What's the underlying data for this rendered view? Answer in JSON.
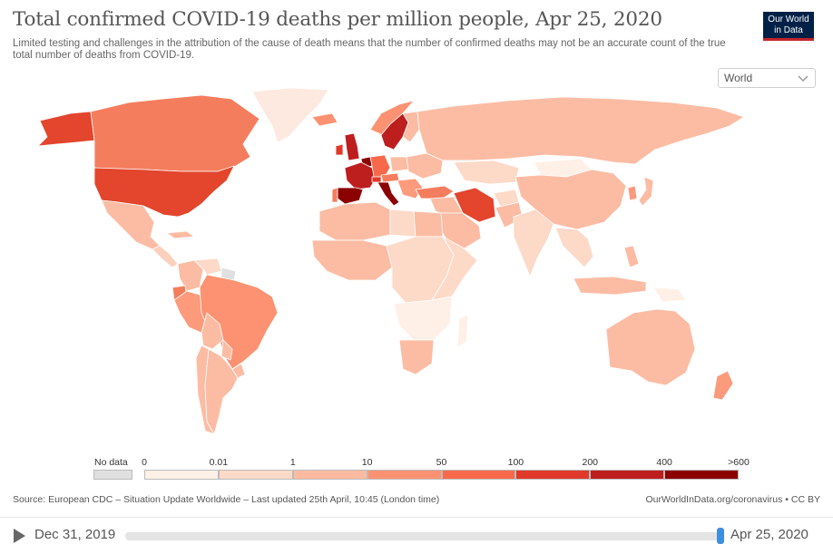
{
  "title": "Total confirmed COVID-19 deaths per million people, Apr 25, 2020",
  "subtitle": "Limited testing and challenges in the attribution of the cause of death means that the number of confirmed deaths may not be an accurate count of the true total number of deaths from COVID-19.",
  "logo": {
    "line1": "Our World",
    "line2": "in Data"
  },
  "region_selector": {
    "value": "World"
  },
  "legend": {
    "no_data_label": "No data",
    "no_data_color": "#e0e0e0",
    "breaks": [
      "0",
      "0.01",
      "1",
      "10",
      "50",
      "100",
      "200",
      "400",
      ">600"
    ],
    "colors": [
      "#fef0e7",
      "#fdd9c8",
      "#fcbba1",
      "#fc9272",
      "#f7694a",
      "#e0392b",
      "#bd1e1e",
      "#8b0000"
    ]
  },
  "regions": [
    {
      "name": "Canada",
      "color": "#f47d5e"
    },
    {
      "name": "United States",
      "color": "#e3452d"
    },
    {
      "name": "Greenland",
      "color": "#fde9e0"
    },
    {
      "name": "Alaska",
      "color": "#e3452d"
    },
    {
      "name": "Mexico",
      "color": "#fcbca4"
    },
    {
      "name": "Central America",
      "color": "#fcd0bc"
    },
    {
      "name": "Cuba",
      "color": "#fcbca4"
    },
    {
      "name": "Colombia",
      "color": "#fcbca4"
    },
    {
      "name": "Venezuela",
      "color": "#fdd9c8"
    },
    {
      "name": "Guyana",
      "color": "#e0e0e0"
    },
    {
      "name": "Ecuador",
      "color": "#f47d5e"
    },
    {
      "name": "Peru",
      "color": "#fc9a7c"
    },
    {
      "name": "Brazil",
      "color": "#fc9272"
    },
    {
      "name": "Bolivia",
      "color": "#fcbca4"
    },
    {
      "name": "Paraguay",
      "color": "#fcbca4"
    },
    {
      "name": "Chile",
      "color": "#fcbca4"
    },
    {
      "name": "Argentina",
      "color": "#fcbca4"
    },
    {
      "name": "Uruguay",
      "color": "#fcbca4"
    },
    {
      "name": "Iceland",
      "color": "#fc9272"
    },
    {
      "name": "Norway",
      "color": "#fc9272"
    },
    {
      "name": "Sweden",
      "color": "#bd1e1e"
    },
    {
      "name": "Finland",
      "color": "#fcbca4"
    },
    {
      "name": "United Kingdom",
      "color": "#bd1e1e"
    },
    {
      "name": "Ireland",
      "color": "#e0392b"
    },
    {
      "name": "France",
      "color": "#bd1e1e"
    },
    {
      "name": "Spain",
      "color": "#8b0000"
    },
    {
      "name": "Portugal",
      "color": "#f47d5e"
    },
    {
      "name": "Italy",
      "color": "#8b0000"
    },
    {
      "name": "Germany",
      "color": "#f7694a"
    },
    {
      "name": "Benelux",
      "color": "#8b0000"
    },
    {
      "name": "Switzerland",
      "color": "#e0392b"
    },
    {
      "name": "Austria",
      "color": "#f47d5e"
    },
    {
      "name": "Poland",
      "color": "#fcbca4"
    },
    {
      "name": "Eastern Europe",
      "color": "#fcbca4"
    },
    {
      "name": "Balkans",
      "color": "#fc9a7c"
    },
    {
      "name": "Turkey",
      "color": "#f47d5e"
    },
    {
      "name": "Russia",
      "color": "#fcbca4"
    },
    {
      "name": "Kazakhstan",
      "color": "#fdd9c8"
    },
    {
      "name": "Mongolia",
      "color": "#fef0e7"
    },
    {
      "name": "China",
      "color": "#fcbca4"
    },
    {
      "name": "Korea",
      "color": "#fc9a7c"
    },
    {
      "name": "Japan",
      "color": "#fcbca4"
    },
    {
      "name": "Iran",
      "color": "#e3452d"
    },
    {
      "name": "Middle East",
      "color": "#fcbca4"
    },
    {
      "name": "Saudi Arabia",
      "color": "#fcbca4"
    },
    {
      "name": "Afghanistan",
      "color": "#fdd9c8"
    },
    {
      "name": "Pakistan",
      "color": "#fcbca4"
    },
    {
      "name": "India",
      "color": "#fdd9c8"
    },
    {
      "name": "Southeast Asia",
      "color": "#fdd9c8"
    },
    {
      "name": "Indonesia",
      "color": "#fcbca4"
    },
    {
      "name": "Philippines",
      "color": "#fcbca4"
    },
    {
      "name": "Papua New Guinea",
      "color": "#fef0e7"
    },
    {
      "name": "Australia",
      "color": "#fcbca4"
    },
    {
      "name": "New Zealand",
      "color": "#fc9a7c"
    },
    {
      "name": "North Africa",
      "color": "#fcbca4"
    },
    {
      "name": "Libya",
      "color": "#fdd9c8"
    },
    {
      "name": "Egypt",
      "color": "#fcbca4"
    },
    {
      "name": "West Africa",
      "color": "#fcbca4"
    },
    {
      "name": "Central Africa",
      "color": "#fdd9c8"
    },
    {
      "name": "East Africa",
      "color": "#fdd9c8"
    },
    {
      "name": "Southern Africa",
      "color": "#fef0e7"
    },
    {
      "name": "South Africa",
      "color": "#fcbca4"
    },
    {
      "name": "Madagascar",
      "color": "#fef0e7"
    }
  ],
  "source": "Source: European CDC – Situation Update Worldwide – Last updated 25th April, 10:45 (London time)",
  "license": "OurWorldInData.org/coronavirus • CC BY",
  "timeline": {
    "start": "Dec 31, 2019",
    "end": "Apr 25, 2020",
    "position_fraction": 1.0
  }
}
